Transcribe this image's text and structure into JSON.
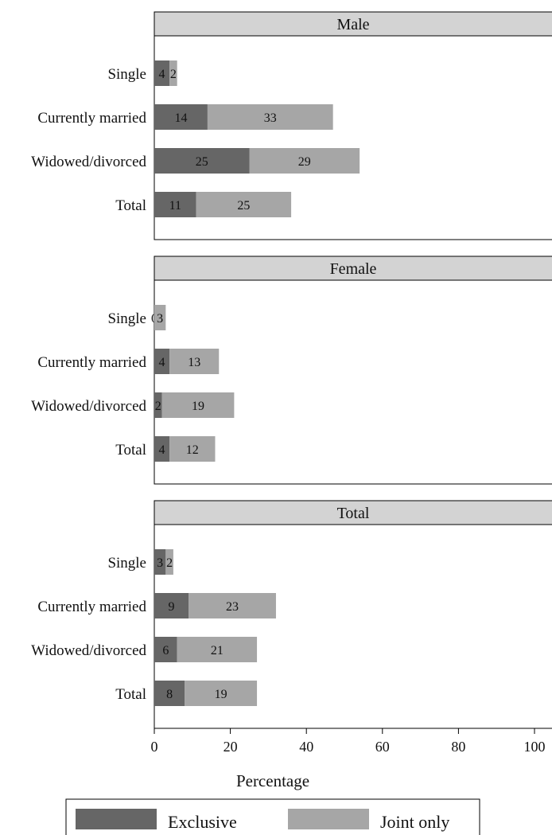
{
  "chart_data": {
    "type": "bar",
    "orientation": "horizontal",
    "stacked": true,
    "categories": [
      "Single",
      "Currently married",
      "Widowed/divorced",
      "Total"
    ],
    "panels": [
      {
        "title": "Male",
        "series": [
          {
            "name": "Exclusive",
            "values": [
              4,
              14,
              25,
              11
            ]
          },
          {
            "name": "Joint only",
            "values": [
              2,
              33,
              29,
              25
            ]
          }
        ]
      },
      {
        "title": "Female",
        "series": [
          {
            "name": "Exclusive",
            "values": [
              0,
              4,
              2,
              4
            ]
          },
          {
            "name": "Joint only",
            "values": [
              3,
              13,
              19,
              12
            ]
          }
        ]
      },
      {
        "title": "Total",
        "series": [
          {
            "name": "Exclusive",
            "values": [
              3,
              9,
              6,
              8
            ]
          },
          {
            "name": "Joint only",
            "values": [
              2,
              23,
              21,
              19
            ]
          }
        ]
      }
    ],
    "xlabel": "Percentage",
    "xlim": [
      0,
      100
    ],
    "xticks": [
      0,
      20,
      40,
      60,
      80,
      100
    ],
    "legend": {
      "position": "bottom",
      "entries": [
        "Exclusive",
        "Joint only"
      ]
    },
    "colors": {
      "exclusive": "#666666",
      "joint": "#a6a6a6",
      "panel_header": "#d3d3d3"
    }
  }
}
